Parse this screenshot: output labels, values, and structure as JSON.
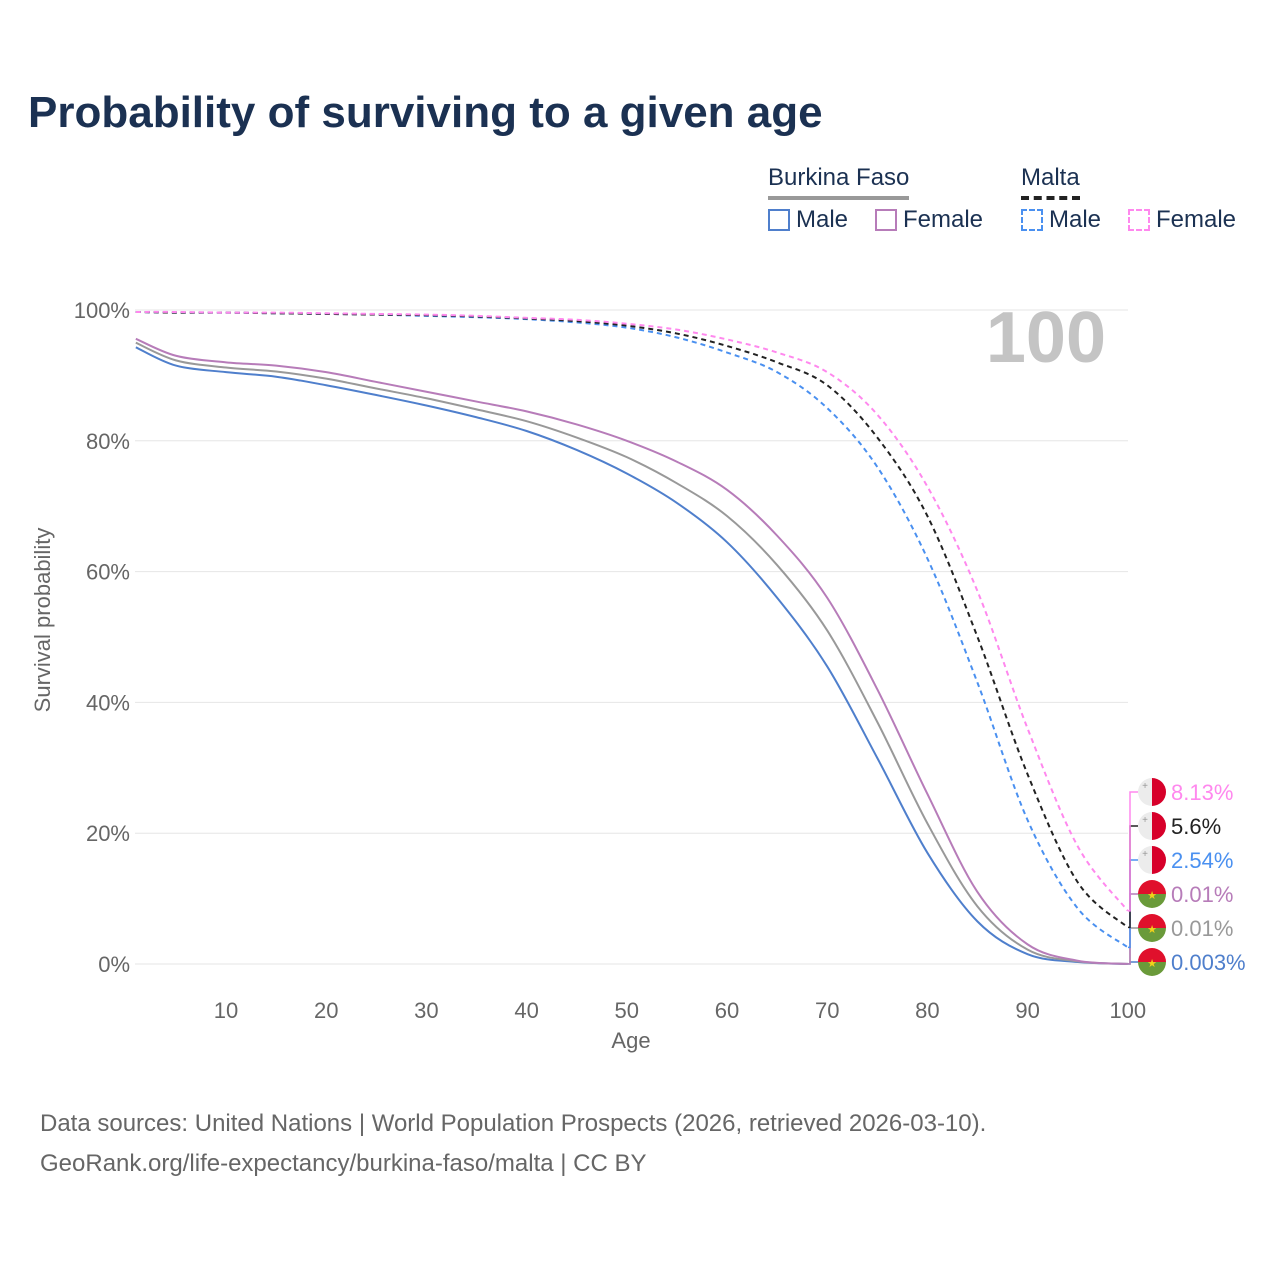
{
  "title": "Probability of surviving to a given age",
  "legend": {
    "groups": [
      {
        "name": "Burkina Faso",
        "color": "#999999"
      },
      {
        "name": "Malta",
        "color": "#222222"
      }
    ],
    "items": [
      {
        "label": "Male",
        "color": "#4f7fcc",
        "dashed": false
      },
      {
        "label": "Female",
        "color": "#b77cb9",
        "dashed": false
      },
      {
        "label": "Male",
        "color": "#4a90f0",
        "dashed": true
      },
      {
        "label": "Female",
        "color": "#ff88ee",
        "dashed": true
      }
    ]
  },
  "year_label": "100",
  "source_line1": "Data sources: United Nations | World Population Prospects (2026, retrieved 2026-03-10).",
  "source_line2": "GeoRank.org/life-expectancy/burkina-faso/malta | CC BY",
  "chart_data": {
    "type": "line",
    "title": "Probability of surviving to a given age",
    "xlabel": "Age",
    "ylabel": "Survival probability",
    "xlim": [
      1,
      100
    ],
    "ylim": [
      0,
      100
    ],
    "xticks": [
      10,
      20,
      30,
      40,
      50,
      60,
      70,
      80,
      90,
      100
    ],
    "yticks": [
      0,
      20,
      40,
      60,
      80,
      100
    ],
    "ytick_labels": [
      "0%",
      "20%",
      "40%",
      "60%",
      "80%",
      "100%"
    ],
    "x": [
      1,
      5,
      10,
      15,
      20,
      25,
      30,
      35,
      40,
      45,
      50,
      55,
      60,
      65,
      70,
      75,
      80,
      85,
      90,
      95,
      100
    ],
    "series": [
      {
        "name": "Burkina Faso Male",
        "color": "#4f7fcc",
        "dashed": false,
        "end_label": "0.003%",
        "flag": "bf",
        "values": [
          94.3,
          91.5,
          90.5,
          89.8,
          88.5,
          87,
          85.4,
          83.6,
          81.5,
          78.6,
          75,
          70.5,
          64.5,
          56,
          45.5,
          31.5,
          17,
          6.5,
          1.5,
          0.3,
          0.003
        ]
      },
      {
        "name": "Burkina Faso Both",
        "color": "#999999",
        "dashed": false,
        "end_label": "0.01%",
        "flag": "bf",
        "values": [
          95,
          92.3,
          91.2,
          90.6,
          89.5,
          88,
          86.5,
          84.8,
          83,
          80.5,
          77.5,
          73.5,
          68.5,
          61,
          51,
          37,
          21.5,
          8.8,
          2.2,
          0.4,
          0.01
        ]
      },
      {
        "name": "Burkina Faso Female",
        "color": "#b77cb9",
        "dashed": false,
        "end_label": "0.01%",
        "flag": "bf",
        "values": [
          95.6,
          93,
          92,
          91.5,
          90.5,
          89,
          87.5,
          86,
          84.5,
          82.5,
          80,
          76.8,
          72.5,
          65.5,
          56,
          42,
          26,
          11,
          3,
          0.5,
          0.01
        ]
      },
      {
        "name": "Malta Male",
        "color": "#4a90f0",
        "dashed": true,
        "end_label": "2.54%",
        "flag": "mt",
        "values": [
          99.7,
          99.6,
          99.6,
          99.5,
          99.4,
          99.3,
          99.1,
          98.9,
          98.6,
          98.1,
          97.3,
          95.8,
          93.5,
          90.5,
          85,
          76,
          62,
          43,
          22,
          8.5,
          2.54
        ]
      },
      {
        "name": "Malta Both",
        "color": "#222222",
        "dashed": true,
        "end_label": "5.6%",
        "flag": "mt",
        "values": [
          99.7,
          99.6,
          99.6,
          99.5,
          99.4,
          99.3,
          99.2,
          99,
          98.7,
          98.3,
          97.6,
          96.4,
          94.5,
          92,
          88.5,
          80.5,
          68.5,
          50,
          29,
          12.5,
          5.6
        ]
      },
      {
        "name": "Malta Female",
        "color": "#ff88ee",
        "dashed": true,
        "end_label": "8.13%",
        "flag": "mt",
        "values": [
          99.7,
          99.7,
          99.6,
          99.6,
          99.5,
          99.4,
          99.3,
          99.1,
          98.8,
          98.5,
          97.9,
          97,
          95.5,
          93.5,
          90.5,
          84,
          73,
          57,
          36,
          18,
          8.13
        ]
      }
    ]
  }
}
